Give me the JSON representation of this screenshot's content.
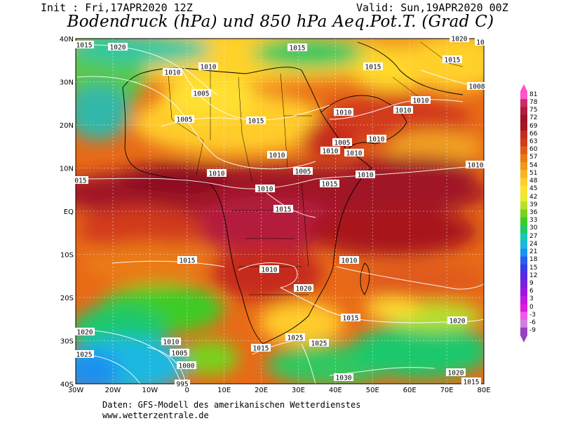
{
  "header": {
    "init": "Init : Fri,17APR2020 12Z",
    "valid": "Valid: Sun,19APR2020 00Z",
    "title": "Bodendruck (hPa) und 850 hPa Aeq.Pot.T. (Grad C)"
  },
  "footer": {
    "line1": "Daten: GFS-Modell des amerikanischen Wetterdienstes",
    "line2": "www.wetterzentrale.de"
  },
  "axes": {
    "lon": [
      "30W",
      "20W",
      "10W",
      "0",
      "10E",
      "20E",
      "30E",
      "40E",
      "50E",
      "60E",
      "70E",
      "80E"
    ],
    "lat": [
      "40N",
      "30N",
      "20N",
      "10N",
      "EQ",
      "10S",
      "20S",
      "30S",
      "40S"
    ]
  },
  "scale": {
    "labels": [
      "81",
      "78",
      "75",
      "72",
      "69",
      "66",
      "63",
      "60",
      "57",
      "54",
      "51",
      "48",
      "45",
      "42",
      "39",
      "36",
      "33",
      "30",
      "27",
      "24",
      "21",
      "18",
      "15",
      "12",
      "9",
      "6",
      "3",
      "0",
      "-3",
      "-6",
      "-9"
    ],
    "colors": [
      "#ff55c8",
      "#cc2b66",
      "#b41a3c",
      "#a01228",
      "#a8161e",
      "#c62a1a",
      "#d23a1a",
      "#e05a1a",
      "#ea7a14",
      "#f0961a",
      "#f8b420",
      "#ffcc2a",
      "#ffe030",
      "#e8ec2c",
      "#b8e02a",
      "#78d21e",
      "#3ccc28",
      "#1ec86c",
      "#18c8b0",
      "#1ab8e0",
      "#1e90f0",
      "#2a5ef0",
      "#3a3ae8",
      "#5a28e6",
      "#7a20e0",
      "#9a18e0",
      "#c218e2",
      "#e018e0",
      "#f058e8",
      "#d080e0",
      "#9a40c0"
    ]
  },
  "isobars": [
    {
      "label": "1015"
    },
    {
      "label": "1020"
    },
    {
      "label": "1010"
    },
    {
      "label": "1010"
    },
    {
      "label": "1015"
    },
    {
      "label": "1015"
    },
    {
      "label": "1020"
    },
    {
      "label": "1015"
    },
    {
      "label": "10"
    },
    {
      "label": "1005"
    },
    {
      "label": "1005"
    },
    {
      "label": "1015"
    },
    {
      "label": "1010"
    },
    {
      "label": "1010"
    },
    {
      "label": "1008"
    },
    {
      "label": "1010"
    },
    {
      "label": "1005"
    },
    {
      "label": "1010"
    },
    {
      "label": "1010"
    },
    {
      "label": "1010"
    },
    {
      "label": "1010"
    },
    {
      "label": "1005"
    },
    {
      "label": "1015"
    },
    {
      "label": "1010"
    },
    {
      "label": "1010"
    },
    {
      "label": "015"
    },
    {
      "label": "1010"
    },
    {
      "label": "1010"
    },
    {
      "label": "1015"
    },
    {
      "label": "1015"
    },
    {
      "label": "1010"
    },
    {
      "label": "1020"
    },
    {
      "label": "1010"
    },
    {
      "label": "1015"
    },
    {
      "label": "1020"
    },
    {
      "label": "1020"
    },
    {
      "label": "1010"
    },
    {
      "label": "1005"
    },
    {
      "label": "1000"
    },
    {
      "label": "995"
    },
    {
      "label": "1015"
    },
    {
      "label": "1025"
    },
    {
      "label": "1025"
    },
    {
      "label": "1025"
    },
    {
      "label": "1030"
    },
    {
      "label": "1020"
    },
    {
      "label": "1015"
    }
  ]
}
